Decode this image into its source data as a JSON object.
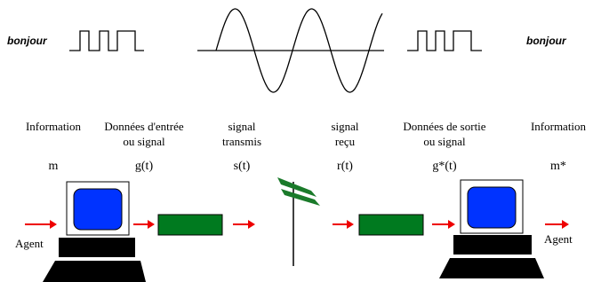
{
  "words": {
    "input": "bonjour",
    "output": "bonjour"
  },
  "stages": [
    {
      "label": [
        "Information"
      ],
      "symbol": "m"
    },
    {
      "label": [
        "Données d'entrée",
        "ou signal"
      ],
      "symbol": "g(t)"
    },
    {
      "label": [
        "signal",
        "transmis"
      ],
      "symbol": "s(t)"
    },
    {
      "label": [
        "signal",
        "reçu"
      ],
      "symbol": "r(t)"
    },
    {
      "label": [
        "Données de sortie",
        "ou signal"
      ],
      "symbol": "g*(t)"
    },
    {
      "label": [
        "Information"
      ],
      "symbol": "m*"
    }
  ],
  "agents": [
    "Agent",
    "Agent"
  ]
}
